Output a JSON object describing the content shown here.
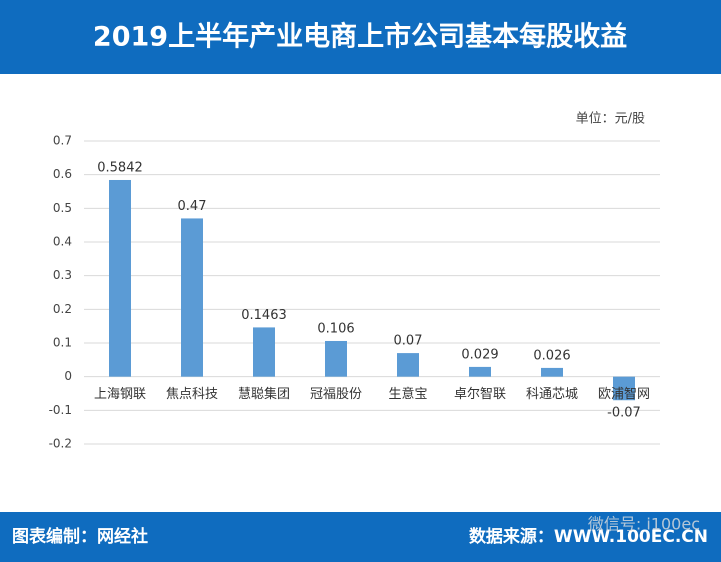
{
  "chart_data": {
    "type": "bar",
    "title": "2019上半年产业电商上市公司基本每股收益",
    "unit_label": "单位：元/股",
    "footer_left": "图表编制：网经社",
    "footer_right": "数据来源：WWW.100EC.CN",
    "watermark": "微信号: i100ec",
    "categories": [
      "上海钢联",
      "焦点科技",
      "慧聪集团",
      "冠福股份",
      "生意宝",
      "卓尔智联",
      "科通芯城",
      "欧浦智网"
    ],
    "values": [
      0.5842,
      0.47,
      0.1463,
      0.106,
      0.07,
      0.029,
      0.026,
      -0.07
    ],
    "color": "#5b9bd5",
    "ylim": [
      -0.2,
      0.7
    ],
    "yticks": [
      -0.2,
      -0.1,
      0,
      0.1,
      0.2,
      0.3,
      0.4,
      0.5,
      0.6,
      0.7
    ],
    "grid": true
  }
}
